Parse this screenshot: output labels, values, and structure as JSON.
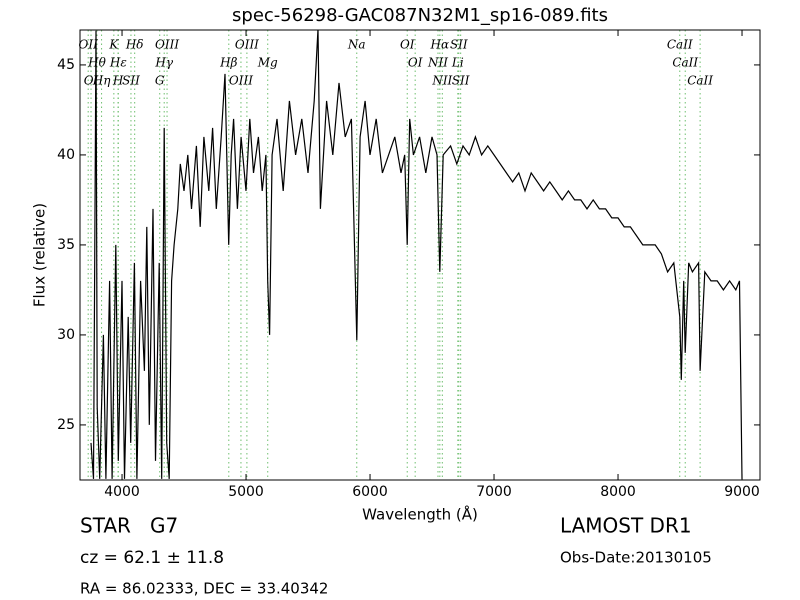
{
  "chart_data": {
    "type": "line",
    "title": "spec-56298-GAC087N32M1_sp16-089.fits",
    "xlabel": "Wavelength (Å)",
    "ylabel": "Flux (relative)",
    "xlim": [
      3661,
      9145
    ],
    "ylim": [
      21.94,
      46.94
    ],
    "xticks": [
      4000,
      5000,
      6000,
      7000,
      8000,
      9000
    ],
    "yticks": [
      25,
      30,
      35,
      40,
      45
    ],
    "color": "#000000",
    "line_color": "#6fbf6f",
    "lines": [
      {
        "label": "OII",
        "x": 3727
      },
      {
        "label": "Hθ",
        "x": 3798
      },
      {
        "label": "OI",
        "x": 3750
      },
      {
        "label": "Hη",
        "x": 3835
      },
      {
        "label": "K",
        "x": 3934
      },
      {
        "label": "Hε",
        "x": 3970
      },
      {
        "label": "H",
        "x": 3968
      },
      {
        "label": "Hδ",
        "x": 4102
      },
      {
        "label": "SII",
        "x": 4072
      },
      {
        "label": "OIII",
        "x": 4363
      },
      {
        "label": "Hγ",
        "x": 4340
      },
      {
        "label": "G",
        "x": 4304
      },
      {
        "label": "OIII",
        "x": 5007
      },
      {
        "label": "Hβ",
        "x": 4861
      },
      {
        "label": "OIII",
        "x": 4959
      },
      {
        "label": "Mg",
        "x": 5175
      },
      {
        "label": "Na",
        "x": 5893
      },
      {
        "label": "OI",
        "x": 6300
      },
      {
        "label": "OI",
        "x": 6364
      },
      {
        "label": "Hα",
        "x": 6563
      },
      {
        "label": "NII",
        "x": 6548
      },
      {
        "label": "NII",
        "x": 6583
      },
      {
        "label": "SII",
        "x": 6716
      },
      {
        "label": "Li",
        "x": 6708
      },
      {
        "label": "SII",
        "x": 6731
      },
      {
        "label": "CaII",
        "x": 8498
      },
      {
        "label": "CaII",
        "x": 8542
      },
      {
        "label": "CaII",
        "x": 8662
      }
    ],
    "x": [
      3750,
      3770,
      3790,
      3800,
      3820,
      3850,
      3870,
      3900,
      3920,
      3950,
      3970,
      4000,
      4020,
      4050,
      4070,
      4100,
      4120,
      4150,
      4180,
      4200,
      4220,
      4250,
      4270,
      4300,
      4320,
      4340,
      4360,
      4380,
      4400,
      4420,
      4450,
      4470,
      4500,
      4530,
      4560,
      4600,
      4630,
      4660,
      4700,
      4730,
      4760,
      4800,
      4830,
      4860,
      4880,
      4900,
      4930,
      4960,
      5000,
      5030,
      5060,
      5100,
      5130,
      5160,
      5175,
      5190,
      5210,
      5250,
      5300,
      5350,
      5400,
      5450,
      5500,
      5550,
      5580,
      5600,
      5650,
      5700,
      5750,
      5800,
      5850,
      5893,
      5920,
      5960,
      6000,
      6050,
      6100,
      6150,
      6200,
      6250,
      6280,
      6300,
      6320,
      6350,
      6400,
      6450,
      6500,
      6540,
      6563,
      6590,
      6650,
      6700,
      6750,
      6800,
      6850,
      6900,
      6950,
      7000,
      7050,
      7100,
      7150,
      7200,
      7250,
      7300,
      7350,
      7400,
      7450,
      7500,
      7550,
      7600,
      7650,
      7700,
      7750,
      7800,
      7850,
      7900,
      7950,
      8000,
      8050,
      8100,
      8150,
      8200,
      8250,
      8300,
      8350,
      8400,
      8450,
      8498,
      8510,
      8530,
      8542,
      8570,
      8600,
      8650,
      8662,
      8700,
      8750,
      8800,
      8850,
      8900,
      8950,
      8980,
      9000
    ],
    "values": [
      24,
      22,
      46.9,
      26,
      22,
      30,
      22,
      33,
      22,
      35,
      23,
      33,
      22,
      31,
      24,
      34,
      22,
      33,
      28,
      36,
      25,
      37,
      23,
      34,
      22,
      41.5,
      24,
      22,
      33,
      35,
      37,
      39.5,
      38,
      40,
      37,
      40.5,
      36,
      41,
      38,
      41.5,
      37,
      41,
      44.5,
      35,
      40,
      42,
      37,
      41,
      38,
      42,
      39,
      41,
      38,
      40,
      33,
      30,
      40,
      42,
      38,
      43,
      40,
      42,
      39,
      43,
      47,
      37,
      43,
      40,
      44,
      41,
      42,
      29.7,
      41,
      43,
      40,
      42,
      39,
      40,
      41,
      39,
      40,
      35,
      42,
      40,
      41,
      39,
      41,
      40,
      33.5,
      40,
      40.5,
      39.5,
      40.5,
      40,
      41,
      40,
      40.5,
      40,
      39.5,
      39,
      38.5,
      39,
      38,
      39,
      38.5,
      38,
      38.5,
      38,
      37.5,
      38,
      37.5,
      37.5,
      37,
      37.5,
      37,
      37,
      36.5,
      36.5,
      36,
      36,
      35.5,
      35,
      35,
      35,
      34.5,
      33.5,
      34,
      31,
      27.5,
      33,
      29,
      34,
      33.5,
      34,
      28,
      33.5,
      33,
      33,
      32.5,
      33,
      32.5,
      33,
      22
    ]
  },
  "footer": {
    "class": "STAR   G7",
    "cz": "cz = 62.1 ± 11.8",
    "coords": "RA = 86.02333, DEC = 33.40342",
    "survey": "LAMOST DR1",
    "obs_date": "Obs-Date:20130105"
  }
}
